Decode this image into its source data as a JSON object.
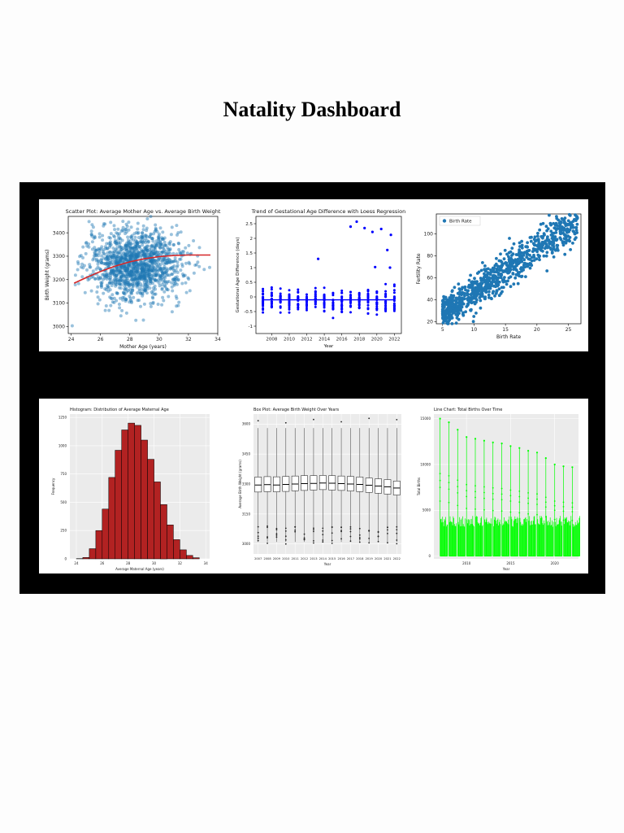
{
  "page": {
    "title": "Natality Dashboard"
  },
  "colors": {
    "board": "#000000",
    "scatter_blue": "#1f77b4",
    "loess_red": "#d62728",
    "gest_blue": "#0000ff",
    "hist_fill": "#b22222",
    "ggplot_bg": "#ebebeb",
    "line_green": "#00ff00"
  },
  "chart_data": [
    {
      "type": "scatter",
      "title": "Scatter Plot: Average Mother Age vs. Average Birth Weight",
      "xlabel": "Mother Age (years)",
      "ylabel": "Birth Weight (grams)",
      "xlim": [
        23.8,
        34
      ],
      "ylim": [
        2970,
        3470
      ],
      "xticks": [
        24,
        26,
        28,
        30,
        32,
        34
      ],
      "yticks": [
        3000,
        3100,
        3200,
        3300,
        3400
      ],
      "cloud": {
        "center": [
          28.4,
          3265
        ],
        "spread": [
          1.6,
          75
        ],
        "count": 1400
      },
      "trend": {
        "x": [
          24.2,
          25,
          26,
          27,
          28,
          29,
          30,
          31,
          32,
          33.5
        ],
        "y": [
          3185,
          3208,
          3235,
          3258,
          3276,
          3289,
          3298,
          3303,
          3305,
          3305
        ]
      }
    },
    {
      "type": "scatter",
      "title": "Trend of Gestational Age Difference with Loess Regression",
      "xlabel": "Year",
      "ylabel": "Gestational Age Difference (days)",
      "xlim": [
        2006.2,
        2022.8
      ],
      "ylim": [
        -1.25,
        2.75
      ],
      "xticks": [
        2008,
        2010,
        2012,
        2014,
        2016,
        2018,
        2020,
        2022
      ],
      "yticks": [
        -1.0,
        -0.5,
        0.0,
        0.5,
        1.0,
        1.5,
        2.0,
        2.5
      ],
      "years": [
        2007,
        2008,
        2009,
        2010,
        2011,
        2012,
        2013,
        2014,
        2015,
        2016,
        2017,
        2018,
        2019,
        2020,
        2021,
        2022
      ],
      "outliers": [
        {
          "x": 2013.3,
          "y": 1.3
        },
        {
          "x": 2017,
          "y": 2.4
        },
        {
          "x": 2017.7,
          "y": 2.57
        },
        {
          "x": 2018.6,
          "y": 2.35
        },
        {
          "x": 2019.5,
          "y": 2.22
        },
        {
          "x": 2020.5,
          "y": 2.32
        },
        {
          "x": 2021.6,
          "y": 2.12
        },
        {
          "x": 2021.2,
          "y": 1.6
        },
        {
          "x": 2019.8,
          "y": 1.02
        },
        {
          "x": 2021.5,
          "y": 1.0
        }
      ],
      "loess": -0.1
    },
    {
      "type": "scatter",
      "title": "",
      "xlabel": "Birth Rate",
      "ylabel": "Fertility Rate",
      "legend": "Birth Rate",
      "legend_position": "top-left",
      "xlim": [
        4,
        27
      ],
      "ylim": [
        18,
        118
      ],
      "xticks": [
        5,
        10,
        15,
        20,
        25
      ],
      "yticks": [
        20,
        40,
        60,
        80,
        100
      ],
      "cloud": {
        "slope": 4.0,
        "intercept": 6,
        "x_range": [
          5,
          26.5
        ],
        "noise": 8,
        "count": 900
      }
    },
    {
      "type": "bar",
      "title": "Histogram: Distribution of Average Maternal Age",
      "xlabel": "Average Maternal Age (years)",
      "ylabel": "Frequency",
      "xlim": [
        23.5,
        34.3
      ],
      "ylim": [
        0,
        1280
      ],
      "xticks": [
        24,
        26,
        28,
        30,
        32,
        34
      ],
      "yticks": [
        0,
        250,
        500,
        750,
        1000,
        1250
      ],
      "bins": {
        "start": 24.0,
        "width": 0.5,
        "values": [
          2,
          12,
          90,
          250,
          440,
          720,
          960,
          1140,
          1200,
          1180,
          1050,
          880,
          680,
          480,
          300,
          170,
          80,
          30,
          10
        ]
      }
    },
    {
      "type": "bar",
      "title": "Box Plot: Average Birth Weight Over Years",
      "xlabel": "Year",
      "ylabel": "Average Birth Weight (grams)",
      "categories": [
        "2007",
        "2008",
        "2009",
        "2010",
        "2011",
        "2012",
        "2013",
        "2014",
        "2015",
        "2016",
        "2017",
        "2018",
        "2019",
        "2020",
        "2021",
        "2022"
      ],
      "ylim": [
        2950,
        3650
      ],
      "yticks": [
        3000,
        3150,
        3300,
        3450,
        3600
      ],
      "median": [
        3295,
        3297,
        3295,
        3298,
        3300,
        3302,
        3303,
        3305,
        3304,
        3302,
        3300,
        3298,
        3294,
        3290,
        3286,
        3280
      ],
      "q1": [
        3260,
        3262,
        3261,
        3263,
        3266,
        3268,
        3270,
        3272,
        3270,
        3268,
        3265,
        3262,
        3258,
        3254,
        3250,
        3245
      ],
      "q3": [
        3335,
        3337,
        3336,
        3338,
        3340,
        3342,
        3342,
        3343,
        3342,
        3340,
        3338,
        3335,
        3330,
        3326,
        3322,
        3315
      ]
    },
    {
      "type": "line",
      "title": "Line Chart: Total Births Over Time",
      "xlabel": "Year",
      "ylabel": "Total Births",
      "xlim": [
        2006.3,
        2022.7
      ],
      "ylim": [
        -300,
        15500
      ],
      "xticks": [
        2010,
        2015,
        2020
      ],
      "yticks": [
        0,
        5000,
        10000,
        15000
      ],
      "years": [
        2007,
        2008,
        2009,
        2010,
        2011,
        2012,
        2013,
        2014,
        2015,
        2016,
        2017,
        2018,
        2019,
        2020,
        2021,
        2022
      ],
      "peaks": [
        15000,
        14600,
        13800,
        13000,
        12800,
        12600,
        12400,
        12300,
        12000,
        11800,
        11500,
        11300,
        10700,
        10000,
        9800,
        9700
      ]
    }
  ]
}
